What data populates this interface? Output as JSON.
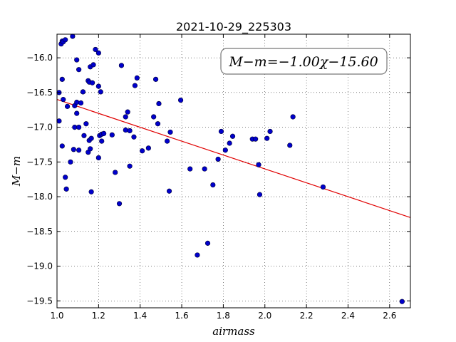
{
  "chart_data": {
    "type": "scatter",
    "title": "2021-10-29_225303",
    "xlabel": "airmass",
    "ylabel": "M−m",
    "annotation": "M−m=−1.00χ−15.60",
    "xlim": [
      1.0,
      2.7
    ],
    "ylim": [
      -19.6,
      -15.66
    ],
    "y_inverted": true,
    "grid": true,
    "xticks": [
      1.0,
      1.2,
      1.4,
      1.6,
      1.8,
      2.0,
      2.2,
      2.4,
      2.6
    ],
    "xtick_labels": [
      "1.0",
      "1.2",
      "1.4",
      "1.6",
      "1.8",
      "2.0",
      "2.2",
      "2.4",
      "2.6"
    ],
    "yticks": [
      -16.0,
      -16.5,
      -17.0,
      -17.5,
      -18.0,
      -18.5,
      -19.0,
      -19.5
    ],
    "ytick_labels": [
      "−16.0",
      "−16.5",
      "−17.0",
      "−17.5",
      "−18.0",
      "−18.5",
      "−19.0",
      "−19.5"
    ],
    "fit_line": {
      "slope": -1.0,
      "intercept": -15.6,
      "color": "#e00000"
    },
    "point_color": "#0000cc",
    "points": [
      [
        1.02,
        -15.8
      ],
      [
        1.025,
        -15.76
      ],
      [
        1.03,
        -15.77
      ],
      [
        1.04,
        -15.74
      ],
      [
        1.075,
        -15.69
      ],
      [
        1.01,
        -16.5
      ],
      [
        1.025,
        -16.31
      ],
      [
        1.03,
        -16.6
      ],
      [
        1.05,
        -16.7
      ],
      [
        1.085,
        -16.69
      ],
      [
        1.095,
        -16.03
      ],
      [
        1.105,
        -16.17
      ],
      [
        1.095,
        -16.64
      ],
      [
        1.115,
        -16.65
      ],
      [
        1.125,
        -16.49
      ],
      [
        1.085,
        -17.0
      ],
      [
        1.105,
        -17.0
      ],
      [
        1.095,
        -16.8
      ],
      [
        1.13,
        -17.12
      ],
      [
        1.14,
        -16.95
      ],
      [
        1.01,
        -16.91
      ],
      [
        1.025,
        -17.27
      ],
      [
        1.04,
        -17.72
      ],
      [
        1.045,
        -17.89
      ],
      [
        1.065,
        -17.5
      ],
      [
        1.08,
        -17.32
      ],
      [
        1.105,
        -17.33
      ],
      [
        1.15,
        -16.33
      ],
      [
        1.155,
        -16.35
      ],
      [
        1.16,
        -16.13
      ],
      [
        1.17,
        -16.36
      ],
      [
        1.175,
        -16.1
      ],
      [
        1.185,
        -15.88
      ],
      [
        1.2,
        -15.93
      ],
      [
        1.2,
        -16.41
      ],
      [
        1.21,
        -16.49
      ],
      [
        1.15,
        -17.36
      ],
      [
        1.155,
        -17.19
      ],
      [
        1.16,
        -17.31
      ],
      [
        1.165,
        -17.16
      ],
      [
        1.165,
        -17.93
      ],
      [
        1.2,
        -17.44
      ],
      [
        1.205,
        -17.12
      ],
      [
        1.215,
        -17.2
      ],
      [
        1.215,
        -17.1
      ],
      [
        1.225,
        -17.09
      ],
      [
        1.265,
        -17.11
      ],
      [
        1.28,
        -17.65
      ],
      [
        1.3,
        -18.1
      ],
      [
        1.31,
        -16.11
      ],
      [
        1.33,
        -16.85
      ],
      [
        1.33,
        -17.04
      ],
      [
        1.34,
        -16.78
      ],
      [
        1.35,
        -17.05
      ],
      [
        1.35,
        -17.56
      ],
      [
        1.37,
        -17.14
      ],
      [
        1.375,
        -16.4
      ],
      [
        1.385,
        -16.29
      ],
      [
        1.41,
        -17.34
      ],
      [
        1.44,
        -17.3
      ],
      [
        1.465,
        -16.85
      ],
      [
        1.475,
        -16.31
      ],
      [
        1.485,
        -16.95
      ],
      [
        1.49,
        -16.66
      ],
      [
        1.53,
        -17.2
      ],
      [
        1.54,
        -17.92
      ],
      [
        1.545,
        -17.07
      ],
      [
        1.595,
        -16.61
      ],
      [
        1.64,
        -17.6
      ],
      [
        1.675,
        -18.84
      ],
      [
        1.71,
        -17.6
      ],
      [
        1.725,
        -18.67
      ],
      [
        1.75,
        -17.83
      ],
      [
        1.775,
        -17.46
      ],
      [
        1.79,
        -17.06
      ],
      [
        1.81,
        -17.33
      ],
      [
        1.83,
        -17.23
      ],
      [
        1.845,
        -17.13
      ],
      [
        1.94,
        -17.17
      ],
      [
        1.955,
        -17.17
      ],
      [
        1.97,
        -17.54
      ],
      [
        1.975,
        -17.97
      ],
      [
        2.01,
        -17.16
      ],
      [
        2.025,
        -17.06
      ],
      [
        2.12,
        -17.26
      ],
      [
        2.135,
        -16.85
      ],
      [
        2.28,
        -17.86
      ],
      [
        2.66,
        -19.51
      ]
    ]
  }
}
